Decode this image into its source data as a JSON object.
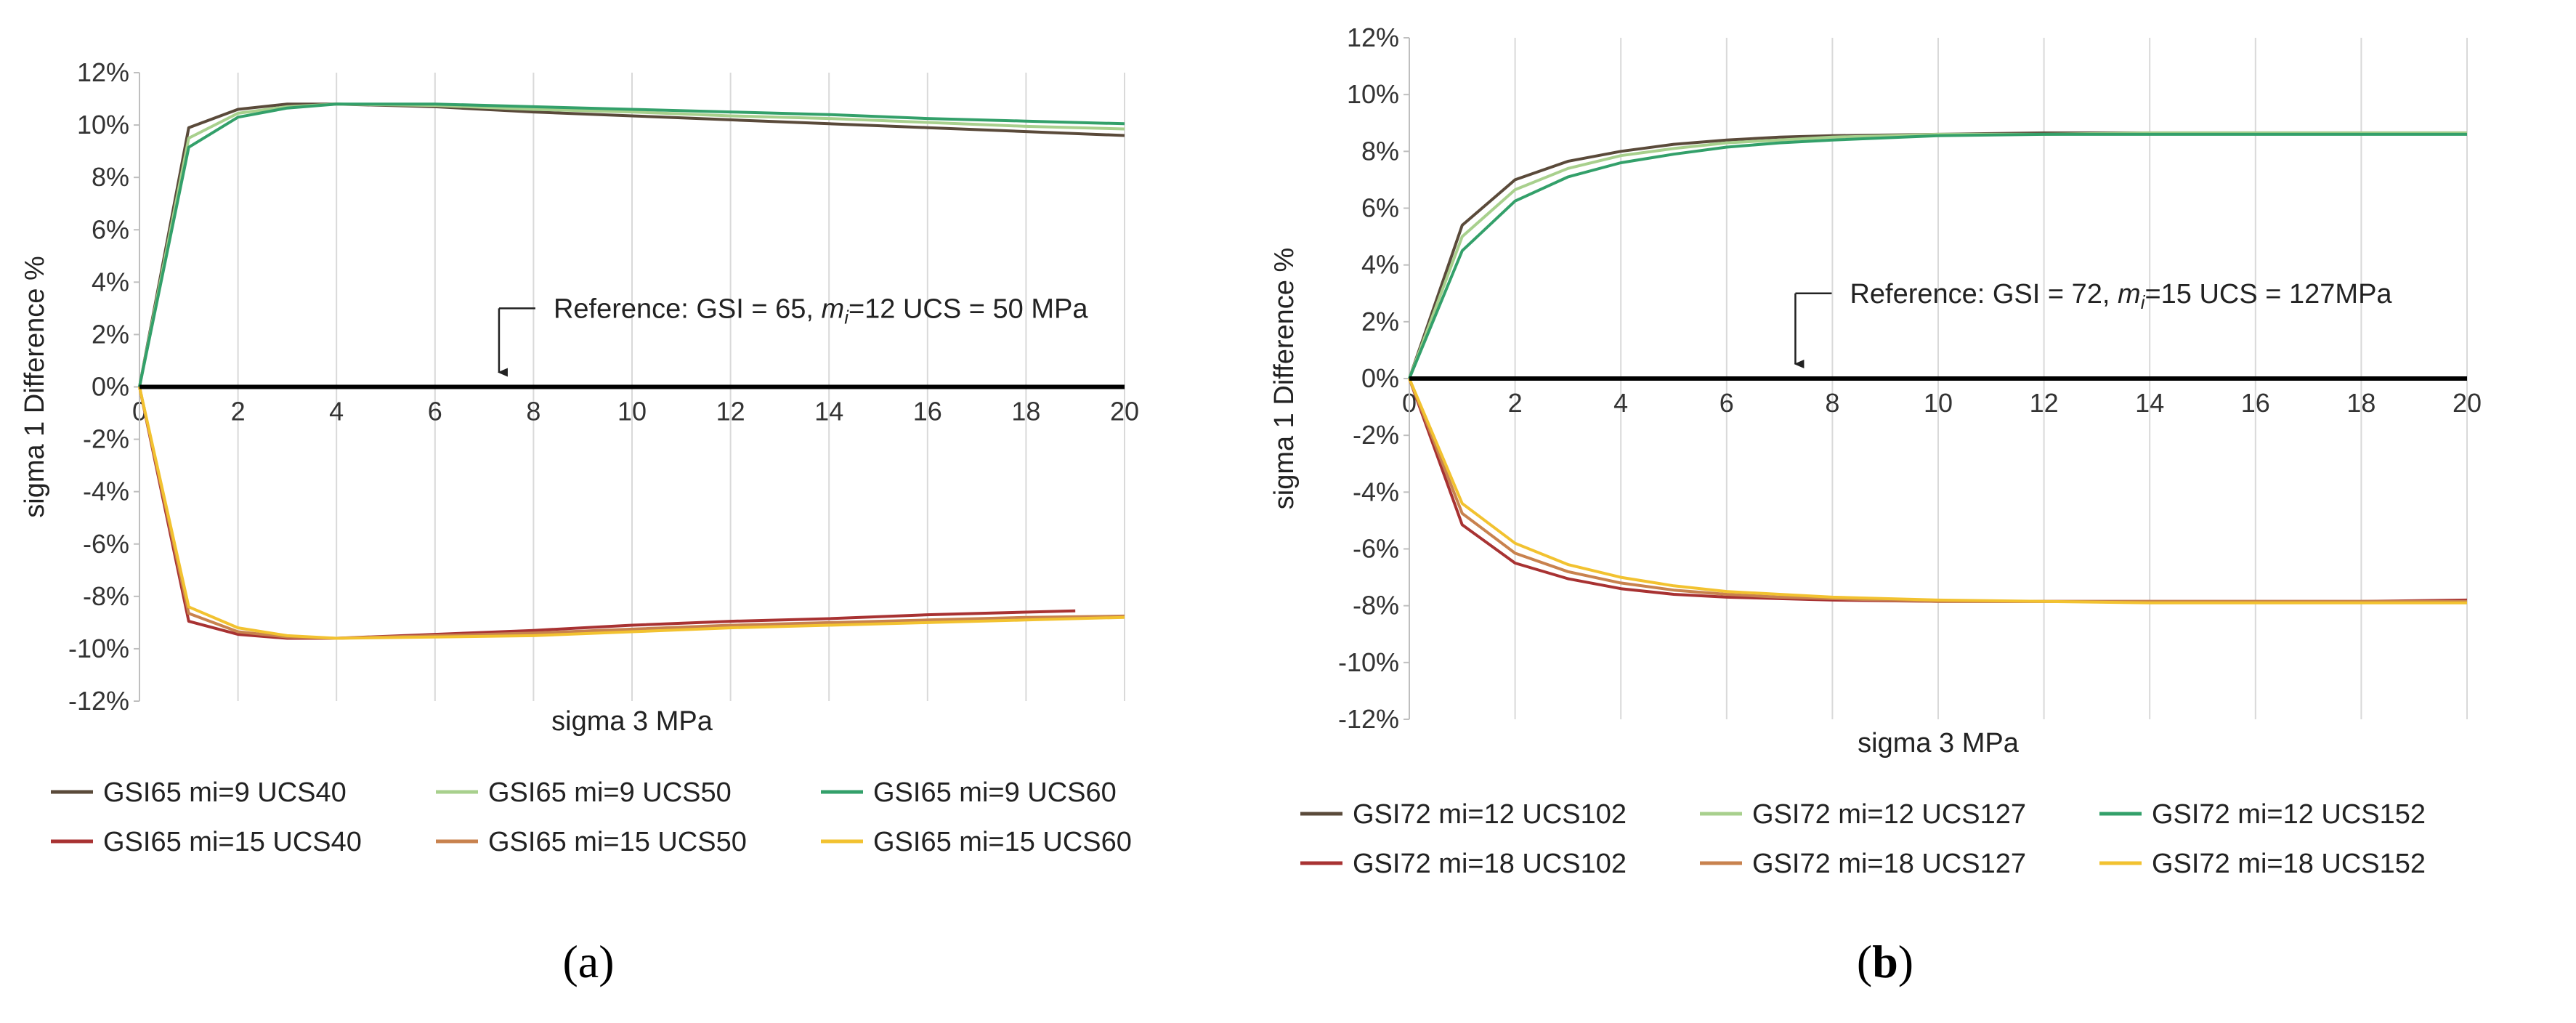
{
  "chart_data": [
    {
      "type": "line",
      "panel_label": "(a)",
      "panel_label_parts": [
        "(",
        "a",
        ")"
      ],
      "xlabel": "sigma 3 MPa",
      "ylabel": "sigma 1 Difference %",
      "xlim": [
        0,
        20
      ],
      "ylim": [
        -12,
        12
      ],
      "x_ticks": [
        "0",
        "2",
        "4",
        "6",
        "8",
        "10",
        "12",
        "14",
        "16",
        "18",
        "20"
      ],
      "y_ticks": [
        "12%",
        "10%",
        "8%",
        "6%",
        "4%",
        "2%",
        "0%",
        "-2%",
        "-4%",
        "-6%",
        "-8%",
        "-10%",
        "-12%"
      ],
      "grid": "vertical",
      "legend_position": "bottom",
      "annotation": {
        "prefix": "Reference:  GSI = 65, ",
        "m": "m",
        "i": "i",
        "suffix": "=12 UCS = 50 MPa",
        "arrow_x": 7.3
      },
      "series": [
        {
          "name": "GSI65 mi=9 UCS40",
          "color": "#5a4a3a",
          "x": [
            0,
            1,
            2,
            3,
            4,
            6,
            8,
            10,
            12,
            14,
            16,
            18,
            20
          ],
          "y": [
            0,
            9.9,
            10.6,
            10.8,
            10.8,
            10.7,
            10.5,
            10.35,
            10.2,
            10.05,
            9.9,
            9.75,
            9.6
          ]
        },
        {
          "name": "GSI65 mi=9 UCS50",
          "color": "#a8d08d",
          "x": [
            0,
            1,
            2,
            3,
            4,
            6,
            8,
            10,
            12,
            14,
            16,
            18,
            20
          ],
          "y": [
            0,
            9.5,
            10.45,
            10.7,
            10.8,
            10.75,
            10.6,
            10.5,
            10.35,
            10.25,
            10.1,
            9.95,
            9.85
          ]
        },
        {
          "name": "GSI65 mi=9 UCS60",
          "color": "#33a06a",
          "x": [
            0,
            1,
            2,
            3,
            4,
            6,
            8,
            10,
            12,
            14,
            16,
            18,
            20
          ],
          "y": [
            0,
            9.15,
            10.3,
            10.65,
            10.8,
            10.8,
            10.7,
            10.6,
            10.5,
            10.4,
            10.25,
            10.15,
            10.05
          ]
        },
        {
          "name": "GSI65 mi=15 UCS40",
          "color": "#a83232",
          "x": [
            0,
            1,
            2,
            3,
            4,
            6,
            8,
            10,
            12,
            14,
            16,
            19
          ],
          "y": [
            0,
            -8.95,
            -9.45,
            -9.6,
            -9.6,
            -9.45,
            -9.3,
            -9.1,
            -8.95,
            -8.85,
            -8.7,
            -8.55
          ]
        },
        {
          "name": "GSI65 mi=15 UCS50",
          "color": "#c8824e",
          "x": [
            0,
            1,
            2,
            3,
            4,
            6,
            8,
            10,
            12,
            14,
            16,
            18,
            20
          ],
          "y": [
            0,
            -8.65,
            -9.35,
            -9.55,
            -9.6,
            -9.5,
            -9.4,
            -9.25,
            -9.1,
            -9.0,
            -8.9,
            -8.8,
            -8.75
          ]
        },
        {
          "name": "GSI65 mi=15 UCS60",
          "color": "#f2c230",
          "x": [
            0,
            1,
            2,
            3,
            4,
            6,
            8,
            10,
            12,
            14,
            16,
            18,
            20
          ],
          "y": [
            0,
            -8.4,
            -9.2,
            -9.5,
            -9.6,
            -9.55,
            -9.5,
            -9.35,
            -9.2,
            -9.1,
            -9.0,
            -8.9,
            -8.8
          ]
        }
      ]
    },
    {
      "type": "line",
      "panel_label": "(b)",
      "panel_label_parts": [
        "(",
        "b",
        ")"
      ],
      "xlabel": "sigma 3 MPa",
      "ylabel": "sigma 1 Difference %",
      "xlim": [
        0,
        20
      ],
      "ylim": [
        -12,
        12
      ],
      "x_ticks": [
        "0",
        "2",
        "4",
        "6",
        "8",
        "10",
        "12",
        "14",
        "16",
        "18",
        "20"
      ],
      "y_ticks": [
        "12%",
        "10%",
        "8%",
        "6%",
        "4%",
        "2%",
        "0%",
        "-2%",
        "-4%",
        "-6%",
        "-8%",
        "-10%",
        "-12%"
      ],
      "grid": "vertical",
      "legend_position": "bottom",
      "annotation": {
        "prefix": "Reference:  GSI = 72, ",
        "m": "m",
        "i": "i",
        "suffix": "=15 UCS = 127MPa",
        "arrow_x": 7.3
      },
      "series": [
        {
          "name": "GSI72 mi=12 UCS102",
          "color": "#5a4a3a",
          "x": [
            0,
            1,
            2,
            3,
            4,
            5,
            6,
            7,
            8,
            10,
            12,
            14,
            16,
            18,
            20
          ],
          "y": [
            0,
            5.4,
            7.0,
            7.65,
            8.0,
            8.25,
            8.4,
            8.5,
            8.55,
            8.6,
            8.65,
            8.65,
            8.65,
            8.65,
            8.65
          ]
        },
        {
          "name": "GSI72 mi=12 UCS127",
          "color": "#a8d08d",
          "x": [
            0,
            1,
            2,
            3,
            4,
            5,
            6,
            7,
            8,
            10,
            12,
            14,
            16,
            18,
            20
          ],
          "y": [
            0,
            5.0,
            6.65,
            7.4,
            7.85,
            8.1,
            8.3,
            8.4,
            8.5,
            8.6,
            8.6,
            8.65,
            8.65,
            8.65,
            8.65
          ]
        },
        {
          "name": "GSI72 mi=12 UCS152",
          "color": "#33a06a",
          "x": [
            0,
            1,
            2,
            3,
            4,
            5,
            6,
            7,
            8,
            10,
            12,
            14,
            16,
            18,
            20
          ],
          "y": [
            0,
            4.5,
            6.25,
            7.1,
            7.6,
            7.9,
            8.15,
            8.3,
            8.4,
            8.55,
            8.6,
            8.6,
            8.6,
            8.6,
            8.6
          ]
        },
        {
          "name": "GSI72 mi=18 UCS102",
          "color": "#a83232",
          "x": [
            0,
            1,
            2,
            3,
            4,
            5,
            6,
            7,
            8,
            10,
            12,
            14,
            16,
            18,
            20
          ],
          "y": [
            0,
            -5.15,
            -6.5,
            -7.05,
            -7.4,
            -7.6,
            -7.7,
            -7.75,
            -7.8,
            -7.85,
            -7.85,
            -7.85,
            -7.85,
            -7.85,
            -7.8
          ]
        },
        {
          "name": "GSI72 mi=18 UCS127",
          "color": "#c8824e",
          "x": [
            0,
            1,
            2,
            3,
            4,
            5,
            6,
            7,
            8,
            10,
            12,
            14,
            16,
            18,
            20
          ],
          "y": [
            0,
            -4.75,
            -6.15,
            -6.8,
            -7.2,
            -7.45,
            -7.6,
            -7.7,
            -7.75,
            -7.85,
            -7.85,
            -7.85,
            -7.85,
            -7.85,
            -7.85
          ]
        },
        {
          "name": "GSI72 mi=18 UCS152",
          "color": "#f2c230",
          "x": [
            0,
            1,
            2,
            3,
            4,
            5,
            6,
            7,
            8,
            10,
            12,
            14,
            16,
            18,
            20
          ],
          "y": [
            0,
            -4.4,
            -5.8,
            -6.55,
            -7.0,
            -7.3,
            -7.5,
            -7.6,
            -7.7,
            -7.8,
            -7.85,
            -7.9,
            -7.9,
            -7.9,
            -7.9
          ]
        }
      ]
    }
  ]
}
